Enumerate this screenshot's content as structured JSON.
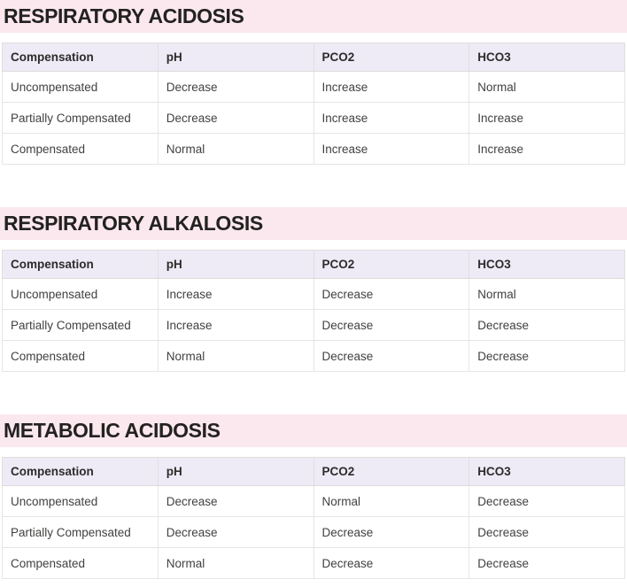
{
  "colors": {
    "banner_bg": "#fbe8ee",
    "table_header_bg": "#eeeaf6",
    "border": "#e1dfdd",
    "title_text": "#232221",
    "cell_text": "#424140"
  },
  "columns": [
    "Compensation",
    "pH",
    "PCO2",
    "HCO3"
  ],
  "sections": [
    {
      "title": "RESPIRATORY ACIDOSIS",
      "rows": [
        [
          "Uncompensated",
          "Decrease",
          "Increase",
          "Normal"
        ],
        [
          "Partially Compensated",
          "Decrease",
          "Increase",
          "Increase"
        ],
        [
          "Compensated",
          "Normal",
          "Increase",
          "Increase"
        ]
      ]
    },
    {
      "title": "RESPIRATORY ALKALOSIS",
      "rows": [
        [
          "Uncompensated",
          "Increase",
          "Decrease",
          "Normal"
        ],
        [
          "Partially Compensated",
          "Increase",
          "Decrease",
          "Decrease"
        ],
        [
          "Compensated",
          "Normal",
          "Decrease",
          "Decrease"
        ]
      ]
    },
    {
      "title": "METABOLIC ACIDOSIS",
      "rows": [
        [
          "Uncompensated",
          "Decrease",
          "Normal",
          "Decrease"
        ],
        [
          "Partially Compensated",
          "Decrease",
          "Decrease",
          "Decrease"
        ],
        [
          "Compensated",
          "Normal",
          "Decrease",
          "Decrease"
        ]
      ]
    }
  ]
}
